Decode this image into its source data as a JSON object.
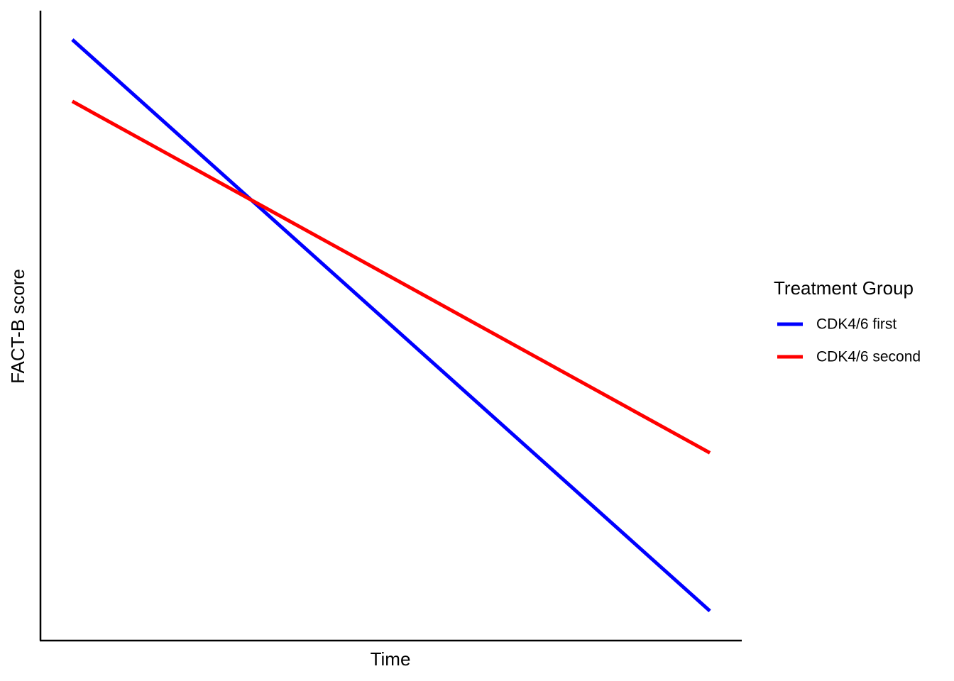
{
  "chart_data": {
    "type": "line",
    "x_label": "Time",
    "y_label": "FACT-B score",
    "x": [
      0,
      1
    ],
    "series": [
      {
        "name": "CDK4/6 first",
        "color": "#0000ff",
        "values": [
          0.954,
          0.047
        ]
      },
      {
        "name": "CDK4/6 second",
        "color": "#ff0000",
        "values": [
          0.856,
          0.298
        ]
      }
    ],
    "xlim": [
      -0.05,
      1.05
    ],
    "ylim": [
      0,
      1
    ],
    "grid": false,
    "legend_title": "Treatment Group",
    "legend_position": "right"
  }
}
